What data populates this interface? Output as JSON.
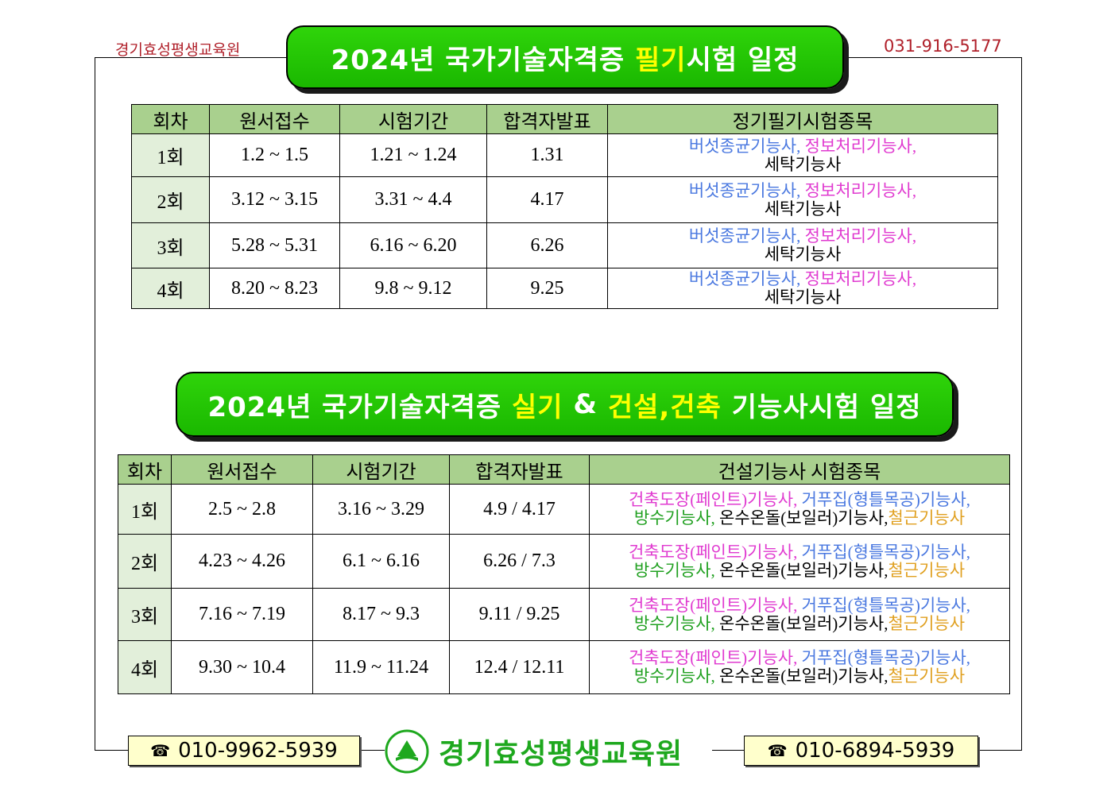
{
  "header": {
    "org_name": "경기효성평생교육원",
    "phone": "031-916-5177"
  },
  "banner1": {
    "pre": "2024년 국가기술자격증 ",
    "highlight": "필기",
    "post": "시험 일정"
  },
  "banner2": {
    "pre": "2024년 국가기술자격증 ",
    "hl1": "실기",
    "mid": " & ",
    "hl2": "건설,건축",
    "post": " 기능사시험 일정"
  },
  "table1": {
    "headers": [
      "회차",
      "원서접수",
      "시험기간",
      "합격자발표",
      "정기필기시험종목"
    ],
    "rows": [
      {
        "round": "1회",
        "apply": "1.2 ~ 1.5",
        "exam": "1.21 ~ 1.24",
        "result": "1.31"
      },
      {
        "round": "2회",
        "apply": "3.12 ~ 3.15",
        "exam": "3.31 ~ 4.4",
        "result": "4.17"
      },
      {
        "round": "3회",
        "apply": "5.28 ~ 5.31",
        "exam": "6.16 ~ 6.20",
        "result": "6.26"
      },
      {
        "round": "4회",
        "apply": "8.20 ~ 8.23",
        "exam": "9.8 ~ 9.12",
        "result": "9.25"
      }
    ],
    "subjects": {
      "a": "버섯종균기능사,",
      "b": " 정보처리기능사,",
      "c": "세탁기능사"
    }
  },
  "table2": {
    "headers": [
      "회차",
      "원서접수",
      "시험기간",
      "합격자발표",
      "건설기능사 시험종목"
    ],
    "rows": [
      {
        "round": "1회",
        "apply": "2.5 ~ 2.8",
        "exam": "3.16 ~ 3.29",
        "result": "4.9 / 4.17"
      },
      {
        "round": "2회",
        "apply": "4.23 ~ 4.26",
        "exam": "6.1 ~ 6.16",
        "result": "6.26 / 7.3"
      },
      {
        "round": "3회",
        "apply": "7.16 ~ 7.19",
        "exam": "8.17 ~ 9.3",
        "result": "9.11 / 9.25"
      },
      {
        "round": "4회",
        "apply": "9.30 ~ 10.4",
        "exam": "11.9 ~ 11.24",
        "result": "12.4 / 12.11"
      }
    ],
    "subjects": {
      "a": "건축도장(페인트)기능사,",
      "b": " 거푸집(형틀목공)기능사,",
      "c": "방수기능사,",
      "d": " 온수온돌(보일러)기능사,",
      "e": "철근기능사"
    }
  },
  "footer": {
    "phone_left": "010-9962-5939",
    "phone_right": "010-6894-5939",
    "org_name": "경기효성평생교육원",
    "phone_icon": "☎"
  },
  "colors": {
    "banner": "#1ab800",
    "highlight": "#ffff00",
    "header_cell": "#a9d08e",
    "first_col": "#e2efda"
  }
}
